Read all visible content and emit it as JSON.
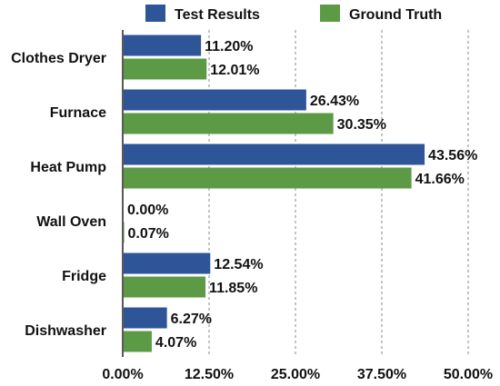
{
  "chart_data": {
    "type": "bar",
    "orientation": "horizontal",
    "categories": [
      "Clothes Dryer",
      "Furnace",
      "Heat Pump",
      "Wall Oven",
      "Fridge",
      "Dishwasher"
    ],
    "series": [
      {
        "name": "Test Results",
        "color": "#2e5597",
        "values": [
          11.2,
          26.43,
          43.56,
          0.0,
          12.54,
          6.27
        ],
        "labels": [
          "11.20%",
          "26.43%",
          "43.56%",
          "0.00%",
          "12.54%",
          "6.27%"
        ]
      },
      {
        "name": "Ground Truth",
        "color": "#5c9a46",
        "values": [
          12.01,
          30.35,
          41.66,
          0.07,
          11.85,
          4.07
        ],
        "labels": [
          "12.01%",
          "30.35%",
          "41.66%",
          "0.07%",
          "11.85%",
          "4.07%"
        ]
      }
    ],
    "xlim": [
      0,
      50
    ],
    "xticks": [
      0,
      12.5,
      25,
      37.5,
      50
    ],
    "xtick_labels": [
      "0.00%",
      "12.50%",
      "25.00%",
      "37.50%",
      "50.00%"
    ],
    "grid": "vertical-dashed",
    "legend_position": "top"
  }
}
